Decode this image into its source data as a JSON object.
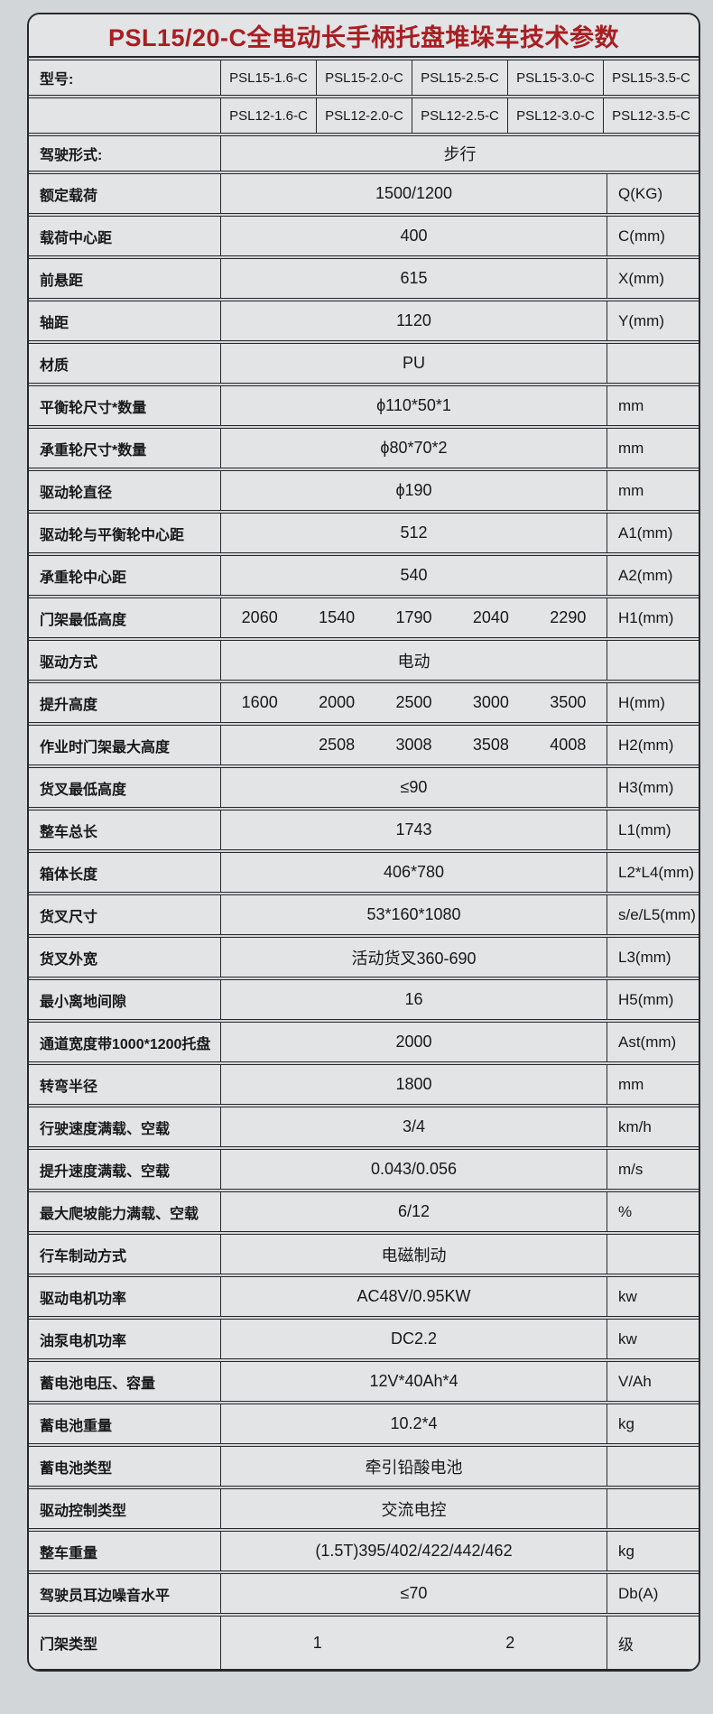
{
  "title": "PSL15/20-C全电动长手柄托盘堆垛车技术参数",
  "colors": {
    "accent_red": "#a81e22",
    "line": "#26282c",
    "cell_bg": "#e2e4e6",
    "page_bg": "#d3d6d9"
  },
  "model_rows": [
    {
      "label": "型号:",
      "models": [
        "PSL15-1.6-C",
        "PSL15-2.0-C",
        "PSL15-2.5-C",
        "PSL15-3.0-C",
        "PSL15-3.5-C"
      ]
    },
    {
      "label": "",
      "models": [
        "PSL12-1.6-C",
        "PSL12-2.0-C",
        "PSL12-2.5-C",
        "PSL12-3.0-C",
        "PSL12-3.5-C"
      ]
    }
  ],
  "rows": [
    {
      "label": "驾驶形式:",
      "value": "步行",
      "unit": null,
      "full": true,
      "h": "model"
    },
    {
      "label": "额定载荷",
      "value": "1500/1200",
      "unit": "Q(KG)"
    },
    {
      "label": "载荷中心距",
      "value": "400",
      "unit": "C(mm)"
    },
    {
      "label": "前悬距",
      "value": "615",
      "unit": "X(mm)"
    },
    {
      "label": "轴距",
      "value": "1120",
      "unit": "Y(mm)"
    },
    {
      "label": "材质",
      "value": "PU",
      "unit": ""
    },
    {
      "label": "平衡轮尺寸*数量",
      "value": "ϕ110*50*1",
      "unit": "mm"
    },
    {
      "label": "承重轮尺寸*数量",
      "value": "ϕ80*70*2",
      "unit": "mm"
    },
    {
      "label": "驱动轮直径",
      "value": "ϕ190",
      "unit": "mm"
    },
    {
      "label": "驱动轮与平衡轮中心距",
      "value": "512",
      "unit": "A1(mm)"
    },
    {
      "label": "承重轮中心距",
      "value": "540",
      "unit": "A2(mm)"
    },
    {
      "label": "门架最低高度",
      "values": [
        "2060",
        "1540",
        "1790",
        "2040",
        "2290"
      ],
      "unit": "H1(mm)"
    },
    {
      "label": "驱动方式",
      "value": "电动",
      "unit": ""
    },
    {
      "label": "提升高度",
      "values": [
        "1600",
        "2000",
        "2500",
        "3000",
        "3500"
      ],
      "unit": "H(mm)"
    },
    {
      "label": "作业时门架最大高度",
      "values": [
        "",
        "2508",
        "3008",
        "3508",
        "4008"
      ],
      "unit": "H2(mm)"
    },
    {
      "label": "货叉最低高度",
      "value": "≤90",
      "unit": "H3(mm)"
    },
    {
      "label": "整车总长",
      "value": "1743",
      "unit": "L1(mm)"
    },
    {
      "label": "箱体长度",
      "value": "406*780",
      "unit": "L2*L4(mm)"
    },
    {
      "label": "货叉尺寸",
      "value": "53*160*1080",
      "unit": "s/e/L5(mm)"
    },
    {
      "label": "货叉外宽",
      "value": "活动货叉360-690",
      "unit": "L3(mm)"
    },
    {
      "label": "最小离地间隙",
      "value": "16",
      "unit": "H5(mm)"
    },
    {
      "label": "通道宽度带1000*1200托盘",
      "value": "2000",
      "unit": "Ast(mm)"
    },
    {
      "label": "转弯半径",
      "value": "1800",
      "unit": "mm"
    },
    {
      "label": "行驶速度满载、空载",
      "value": "3/4",
      "unit": "km/h"
    },
    {
      "label": "提升速度满载、空载",
      "value": "0.043/0.056",
      "unit": "m/s"
    },
    {
      "label": "最大爬坡能力满载、空载",
      "value": "6/12",
      "unit": "%"
    },
    {
      "label": "行车制动方式",
      "value": "电磁制动",
      "unit": ""
    },
    {
      "label": "驱动电机功率",
      "value": "AC48V/0.95KW",
      "unit": "kw"
    },
    {
      "label": "油泵电机功率",
      "value": "DC2.2",
      "unit": "kw"
    },
    {
      "label": "蓄电池电压、容量",
      "value": "12V*40Ah*4",
      "unit": "V/Ah"
    },
    {
      "label": "蓄电池重量",
      "value": "10.2*4",
      "unit": "kg"
    },
    {
      "label": "蓄电池类型",
      "value": "牵引铅酸电池",
      "unit": ""
    },
    {
      "label": "驱动控制类型",
      "value": "交流电控",
      "unit": ""
    },
    {
      "label": "整车重量",
      "value": "(1.5T)395/402/422/442/462",
      "unit": "kg"
    },
    {
      "label": "驾驶员耳边噪音水平",
      "value": "≤70",
      "unit": "Db(A)"
    },
    {
      "label": "门架类型",
      "values": [
        "1",
        "2"
      ],
      "unit": "级",
      "h": "tall"
    }
  ]
}
